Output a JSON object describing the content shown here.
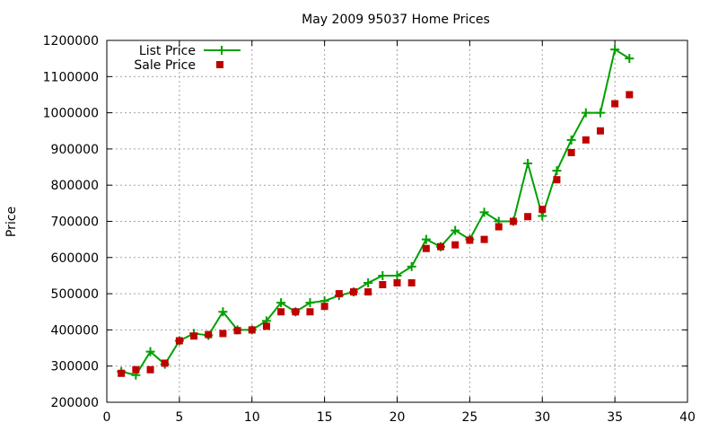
{
  "chart_data": {
    "type": "line",
    "title": "May 2009 95037 Home Prices",
    "xlabel": "",
    "ylabel": "Price",
    "xlim": [
      0,
      40
    ],
    "ylim": [
      200000,
      1200000
    ],
    "x_ticks": [
      0,
      5,
      10,
      15,
      20,
      25,
      30,
      35,
      40
    ],
    "y_ticks": [
      200000,
      300000,
      400000,
      500000,
      600000,
      700000,
      800000,
      900000,
      1000000,
      1100000,
      1200000
    ],
    "grid": true,
    "legend_position": "top-left",
    "series": [
      {
        "name": "List Price",
        "style": "line-with-plus-markers",
        "color": "#00a000",
        "points": [
          [
            1,
            285000
          ],
          [
            2,
            275000
          ],
          [
            3,
            340000
          ],
          [
            4,
            305000
          ],
          [
            5,
            370000
          ],
          [
            6,
            390000
          ],
          [
            7,
            385000
          ],
          [
            8,
            450000
          ],
          [
            9,
            400000
          ],
          [
            10,
            400000
          ],
          [
            11,
            425000
          ],
          [
            12,
            475000
          ],
          [
            13,
            450000
          ],
          [
            14,
            475000
          ],
          [
            15,
            480000
          ],
          [
            16,
            495000
          ],
          [
            17,
            505000
          ],
          [
            18,
            530000
          ],
          [
            19,
            550000
          ],
          [
            20,
            550000
          ],
          [
            21,
            575000
          ],
          [
            22,
            650000
          ],
          [
            23,
            630000
          ],
          [
            24,
            675000
          ],
          [
            25,
            650000
          ],
          [
            26,
            725000
          ],
          [
            27,
            700000
          ],
          [
            28,
            700000
          ],
          [
            29,
            860000
          ],
          [
            30,
            715000
          ],
          [
            31,
            840000
          ],
          [
            32,
            925000
          ],
          [
            33,
            1000000
          ],
          [
            34,
            1000000
          ],
          [
            35,
            1175000
          ],
          [
            36,
            1150000
          ]
        ]
      },
      {
        "name": "Sale Price",
        "style": "square-markers",
        "color": "#c00000",
        "points": [
          [
            1,
            280000
          ],
          [
            2,
            290000
          ],
          [
            3,
            290000
          ],
          [
            4,
            308000
          ],
          [
            5,
            370000
          ],
          [
            6,
            383000
          ],
          [
            7,
            387000
          ],
          [
            8,
            390000
          ],
          [
            9,
            398000
          ],
          [
            10,
            400000
          ],
          [
            11,
            410000
          ],
          [
            12,
            450000
          ],
          [
            13,
            450000
          ],
          [
            14,
            450000
          ],
          [
            15,
            465000
          ],
          [
            16,
            500000
          ],
          [
            17,
            505000
          ],
          [
            18,
            505000
          ],
          [
            19,
            525000
          ],
          [
            20,
            530000
          ],
          [
            21,
            530000
          ],
          [
            22,
            625000
          ],
          [
            23,
            630000
          ],
          [
            24,
            635000
          ],
          [
            25,
            648000
          ],
          [
            26,
            650000
          ],
          [
            27,
            685000
          ],
          [
            28,
            700000
          ],
          [
            29,
            713000
          ],
          [
            30,
            733000
          ],
          [
            31,
            815000
          ],
          [
            32,
            890000
          ],
          [
            33,
            925000
          ],
          [
            34,
            950000
          ],
          [
            35,
            1025000
          ],
          [
            36,
            1050000
          ]
        ]
      }
    ]
  }
}
